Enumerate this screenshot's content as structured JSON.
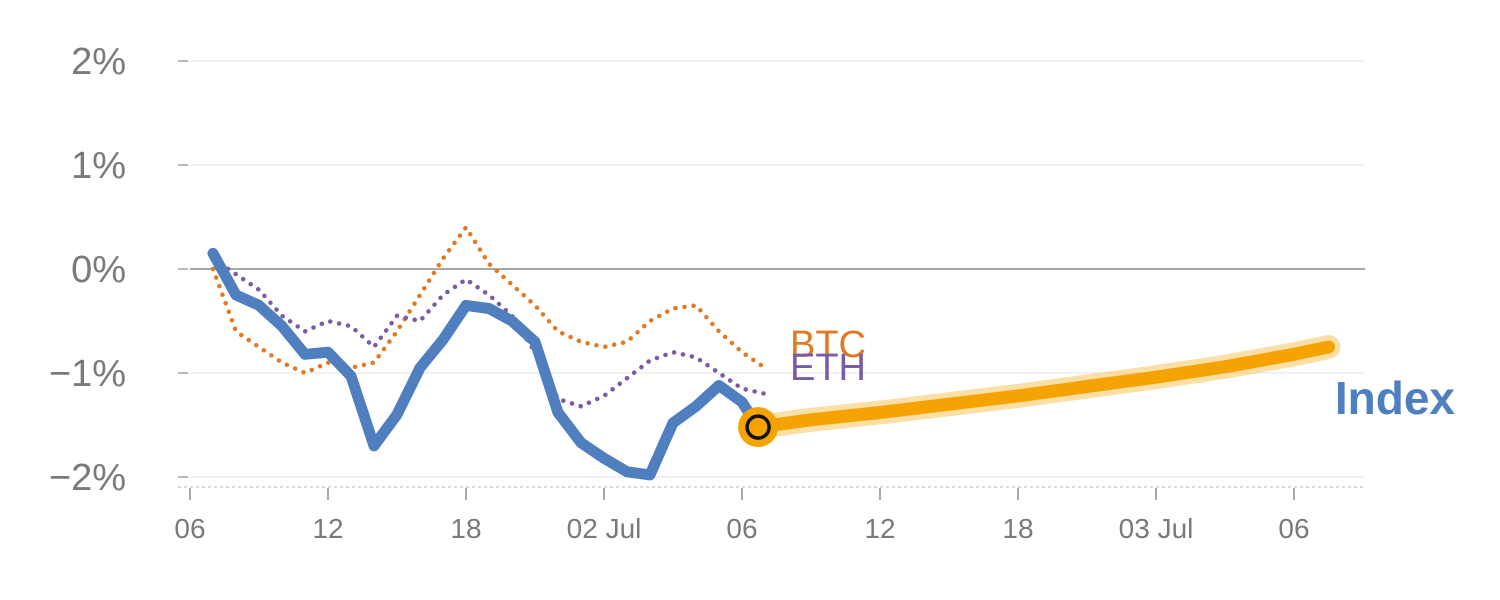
{
  "chart_data": {
    "type": "line",
    "y_ticks": [
      {
        "label": "2%",
        "value": 2
      },
      {
        "label": "1%",
        "value": 1
      },
      {
        "label": "0%",
        "value": 0
      },
      {
        "label": "−1%",
        "value": -1
      },
      {
        "label": "−2%",
        "value": -2
      }
    ],
    "ylim": [
      -2.1,
      2.1
    ],
    "x_ticks": [
      {
        "label": "06",
        "value": 0
      },
      {
        "label": "12",
        "value": 6
      },
      {
        "label": "18",
        "value": 12
      },
      {
        "label": "02 Jul",
        "value": 18
      },
      {
        "label": "06",
        "value": 24
      },
      {
        "label": "12",
        "value": 30
      },
      {
        "label": "18",
        "value": 36
      },
      {
        "label": "03 Jul",
        "value": 42
      },
      {
        "label": "06",
        "value": 48
      }
    ],
    "xlim": [
      -0.3,
      51
    ],
    "grid": true,
    "series": [
      {
        "name": "BTC",
        "color": "#e07b24",
        "style": "dotted",
        "x": [
          1,
          2,
          3,
          4,
          5,
          6,
          7,
          8,
          9,
          10,
          11,
          12,
          13,
          14,
          15,
          16,
          17,
          18,
          19,
          20,
          21,
          22,
          23,
          24,
          25
        ],
        "y": [
          0,
          -0.6,
          -0.75,
          -0.9,
          -1.0,
          -0.9,
          -0.95,
          -0.9,
          -0.6,
          -0.25,
          0.1,
          0.4,
          0.05,
          -0.15,
          -0.35,
          -0.6,
          -0.7,
          -0.75,
          -0.7,
          -0.5,
          -0.38,
          -0.35,
          -0.6,
          -0.8,
          -0.95
        ]
      },
      {
        "name": "ETH",
        "color": "#7b5aa6",
        "style": "dotted",
        "x": [
          1,
          2,
          3,
          4,
          5,
          6,
          7,
          8,
          9,
          10,
          11,
          12,
          13,
          14,
          15,
          16,
          17,
          18,
          19,
          20,
          21,
          22,
          23,
          24,
          25
        ],
        "y": [
          0.1,
          -0.05,
          -0.2,
          -0.45,
          -0.6,
          -0.5,
          -0.55,
          -0.75,
          -0.45,
          -0.5,
          -0.25,
          -0.1,
          -0.25,
          -0.45,
          -0.8,
          -1.25,
          -1.32,
          -1.22,
          -1.05,
          -0.88,
          -0.8,
          -0.85,
          -1.0,
          -1.15,
          -1.2
        ]
      },
      {
        "name": "Index",
        "color": "#4f7fbf",
        "style": "solid",
        "x": [
          1,
          2,
          3,
          4,
          5,
          6,
          7,
          8,
          9,
          10,
          11,
          12,
          13,
          14,
          15,
          16,
          17,
          18,
          19,
          20,
          21,
          22,
          23,
          24,
          24.7
        ],
        "y": [
          0.15,
          -0.25,
          -0.35,
          -0.55,
          -0.82,
          -0.8,
          -1.03,
          -1.7,
          -1.4,
          -0.95,
          -0.68,
          -0.35,
          -0.38,
          -0.5,
          -0.7,
          -1.38,
          -1.67,
          -1.82,
          -1.95,
          -1.98,
          -1.48,
          -1.32,
          -1.12,
          -1.28,
          -1.52
        ]
      }
    ],
    "forecast": {
      "name": "Index",
      "color": "#f5a300",
      "x": [
        24.7,
        27,
        30,
        33,
        36,
        39,
        42,
        45,
        48,
        49.5
      ],
      "y": [
        -1.52,
        -1.45,
        -1.38,
        -1.3,
        -1.22,
        -1.13,
        -1.04,
        -0.94,
        -0.82,
        -0.75
      ]
    },
    "marker": {
      "x": 24.7,
      "y": -1.52
    }
  }
}
